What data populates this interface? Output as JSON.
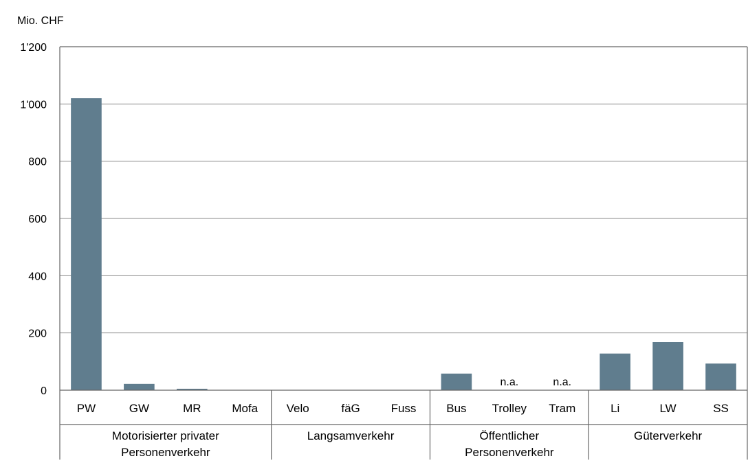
{
  "chart_data": {
    "type": "bar",
    "ylabel": "Mio. CHF",
    "ylim": [
      0,
      1200
    ],
    "yticks": [
      "0",
      "200",
      "400",
      "600",
      "800",
      "1'000",
      "1'200"
    ],
    "ytick_values": [
      0,
      200,
      400,
      600,
      800,
      1000,
      1200
    ],
    "grid": true,
    "bar_color": "#607d8e",
    "categories": [
      "PW",
      "GW",
      "MR",
      "Mofa",
      "Velo",
      "fäG",
      "Fuss",
      "Bus",
      "Trolley",
      "Tram",
      "Li",
      "LW",
      "SS"
    ],
    "values": [
      1020,
      22,
      5,
      0,
      0,
      0,
      0,
      58,
      null,
      null,
      128,
      168,
      93
    ],
    "value_labels": [
      "",
      "",
      "",
      "",
      "",
      "",
      "",
      "",
      "n.a.",
      "n.a.",
      "",
      "",
      ""
    ],
    "groups": [
      {
        "label": [
          "Motorisierter privater",
          "Personenverkehr"
        ],
        "count": 4
      },
      {
        "label": [
          "Langsamverkehr"
        ],
        "count": 3
      },
      {
        "label": [
          "Öffentlicher",
          "Personenverkehr"
        ],
        "count": 3
      },
      {
        "label": [
          "Güterverkehr"
        ],
        "count": 3
      }
    ]
  }
}
